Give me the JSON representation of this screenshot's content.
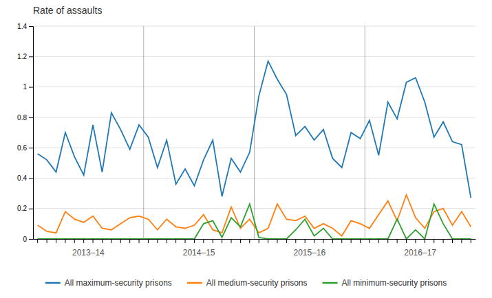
{
  "chart_data": {
    "type": "line",
    "title": "Rate of assaults",
    "categories": [
      null,
      null,
      null,
      null,
      null,
      null,
      null,
      null,
      null,
      null,
      null,
      null,
      null,
      null,
      null,
      null,
      null,
      null,
      null,
      null,
      null,
      null,
      null,
      null,
      null,
      null,
      null,
      null,
      null,
      null,
      null,
      null,
      null,
      null,
      null,
      null,
      null,
      null,
      null,
      null,
      null,
      null,
      null,
      null,
      null,
      null,
      null,
      null
    ],
    "annotations": [
      "2013–14",
      "2014–15",
      "2015–16",
      "2016–17"
    ],
    "series": [
      {
        "name": "All maximum-security prisons",
        "values": [
          0.56,
          0.52,
          0.44,
          0.7,
          0.54,
          0.42,
          0.75,
          0.44,
          0.83,
          0.72,
          0.59,
          0.75,
          0.67,
          0.47,
          0.65,
          0.36,
          0.46,
          0.35,
          0.52,
          0.65,
          0.28,
          0.53,
          0.44,
          0.57,
          0.94,
          1.17,
          1.05,
          0.95,
          0.68,
          0.74,
          0.65,
          0.72,
          0.53,
          0.47,
          0.7,
          0.66,
          0.78,
          0.55,
          0.9,
          0.79,
          1.03,
          1.06,
          0.9,
          0.67,
          0.77,
          0.64,
          0.62,
          0.27
        ]
      },
      {
        "name": "All medium-security prisons",
        "values": [
          0.09,
          0.05,
          0.04,
          0.18,
          0.13,
          0.11,
          0.15,
          0.07,
          0.06,
          0.1,
          0.14,
          0.15,
          0.13,
          0.06,
          0.13,
          0.08,
          0.07,
          0.09,
          0.16,
          0.06,
          0.04,
          0.21,
          0.07,
          0.13,
          0.04,
          0.07,
          0.23,
          0.13,
          0.12,
          0.15,
          0.07,
          0.1,
          0.07,
          0.02,
          0.12,
          0.1,
          0.07,
          0.16,
          0.25,
          0.12,
          0.29,
          0.14,
          0.07,
          0.18,
          0.2,
          0.09,
          0.18,
          0.08
        ]
      },
      {
        "name": "All minimum-security prisons",
        "values": [
          0.0,
          0.0,
          0.0,
          0.0,
          0.0,
          0.0,
          0.0,
          0.0,
          0.0,
          0.0,
          0.0,
          0.0,
          0.0,
          0.0,
          0.0,
          0.0,
          0.0,
          0.0,
          0.1,
          0.12,
          0.01,
          0.14,
          0.08,
          0.23,
          0.01,
          0.0,
          0.0,
          0.0,
          0.06,
          0.13,
          0.02,
          0.07,
          0.0,
          0.0,
          0.0,
          0.0,
          0.0,
          0.0,
          0.0,
          0.13,
          0.0,
          0.06,
          0.0,
          0.23,
          0.1,
          0.0,
          0.0,
          0.0
        ]
      }
    ],
    "ylim": [
      0.0,
      1.4
    ],
    "yticks": [
      0,
      0.2,
      0.4,
      0.6,
      0.8,
      1,
      1.2,
      1.4
    ],
    "grid": true,
    "legend": "bottom"
  }
}
